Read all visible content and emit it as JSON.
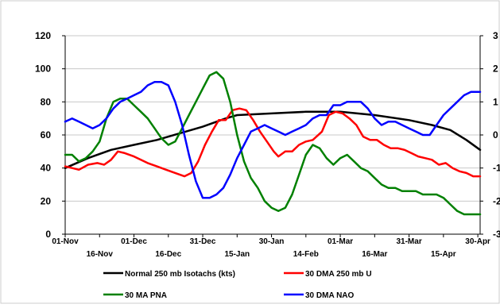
{
  "chart_data": {
    "type": "line",
    "y_left": {
      "min": 0,
      "max": 120,
      "ticks": [
        0,
        20,
        40,
        60,
        80,
        100,
        120
      ]
    },
    "y_right": {
      "min": -3,
      "max": 3,
      "ticks": [
        -3,
        -2,
        -1,
        0,
        1,
        2,
        3
      ],
      "tick_labels": [
        "-3",
        "-2",
        "-1",
        "0",
        "1",
        "2",
        "3"
      ]
    },
    "x": {
      "min": 0,
      "max": 181,
      "ticks_top_row": [
        {
          "label": "01-Nov",
          "day": 0
        },
        {
          "label": "01-Dec",
          "day": 30
        },
        {
          "label": "31-Dec",
          "day": 60
        },
        {
          "label": "30-Jan",
          "day": 90
        },
        {
          "label": "01-Mar",
          "day": 120
        },
        {
          "label": "31-Mar",
          "day": 150
        },
        {
          "label": "30-Apr",
          "day": 180
        }
      ],
      "ticks_bottom_row": [
        {
          "label": "16-Nov",
          "day": 15
        },
        {
          "label": "16-Dec",
          "day": 45
        },
        {
          "label": "15-Jan",
          "day": 75
        },
        {
          "label": "14-Feb",
          "day": 105
        },
        {
          "label": "16-Mar",
          "day": 135
        },
        {
          "label": "15-Apr",
          "day": 165
        }
      ]
    },
    "grid": "horizontal",
    "legend_position": "bottom",
    "series": [
      {
        "name": "Normal 250 mb Isotachs (kts)",
        "color": "#000000",
        "axis": "left",
        "points": [
          [
            0,
            40
          ],
          [
            10,
            46
          ],
          [
            20,
            51
          ],
          [
            30,
            54
          ],
          [
            40,
            57
          ],
          [
            50,
            61
          ],
          [
            60,
            65
          ],
          [
            70,
            70
          ],
          [
            75,
            72
          ],
          [
            90,
            73
          ],
          [
            105,
            74
          ],
          [
            120,
            74
          ],
          [
            135,
            72
          ],
          [
            150,
            69
          ],
          [
            160,
            66
          ],
          [
            168,
            63
          ],
          [
            175,
            57
          ],
          [
            181,
            51
          ]
        ]
      },
      {
        "name": "30 DMA 250 mb U",
        "color": "#ff0000",
        "axis": "left",
        "points": [
          [
            0,
            41
          ],
          [
            3,
            40
          ],
          [
            6,
            39
          ],
          [
            10,
            42
          ],
          [
            14,
            43
          ],
          [
            17,
            42
          ],
          [
            20,
            45
          ],
          [
            23,
            50
          ],
          [
            26,
            49
          ],
          [
            30,
            47
          ],
          [
            33,
            45
          ],
          [
            36,
            43
          ],
          [
            40,
            41
          ],
          [
            44,
            39
          ],
          [
            48,
            37
          ],
          [
            52,
            35
          ],
          [
            55,
            37
          ],
          [
            58,
            44
          ],
          [
            61,
            54
          ],
          [
            64,
            62
          ],
          [
            67,
            69
          ],
          [
            70,
            69
          ],
          [
            73,
            75
          ],
          [
            76,
            76
          ],
          [
            79,
            75
          ],
          [
            82,
            69
          ],
          [
            85,
            62
          ],
          [
            88,
            56
          ],
          [
            91,
            50
          ],
          [
            93,
            47
          ],
          [
            96,
            50
          ],
          [
            99,
            50
          ],
          [
            102,
            54
          ],
          [
            105,
            56
          ],
          [
            108,
            57
          ],
          [
            112,
            62
          ],
          [
            115,
            72
          ],
          [
            118,
            74
          ],
          [
            121,
            73
          ],
          [
            124,
            70
          ],
          [
            127,
            66
          ],
          [
            130,
            59
          ],
          [
            133,
            57
          ],
          [
            136,
            57
          ],
          [
            139,
            54
          ],
          [
            142,
            52
          ],
          [
            145,
            52
          ],
          [
            148,
            51
          ],
          [
            151,
            49
          ],
          [
            154,
            47
          ],
          [
            157,
            46
          ],
          [
            160,
            45
          ],
          [
            163,
            42
          ],
          [
            166,
            43
          ],
          [
            169,
            40
          ],
          [
            172,
            38
          ],
          [
            175,
            37
          ],
          [
            178,
            35
          ],
          [
            181,
            35
          ]
        ]
      },
      {
        "name": "30 MA PNA",
        "color": "#008000",
        "axis": "right",
        "points": [
          [
            0,
            -0.6
          ],
          [
            3,
            -0.6
          ],
          [
            6,
            -0.8
          ],
          [
            9,
            -0.7
          ],
          [
            12,
            -0.5
          ],
          [
            15,
            -0.2
          ],
          [
            18,
            0.5
          ],
          [
            21,
            1.0
          ],
          [
            24,
            1.1
          ],
          [
            27,
            1.1
          ],
          [
            30,
            0.9
          ],
          [
            33,
            0.7
          ],
          [
            36,
            0.5
          ],
          [
            39,
            0.2
          ],
          [
            42,
            -0.1
          ],
          [
            45,
            -0.3
          ],
          [
            48,
            -0.2
          ],
          [
            51,
            0.2
          ],
          [
            54,
            0.6
          ],
          [
            57,
            1.0
          ],
          [
            60,
            1.4
          ],
          [
            63,
            1.8
          ],
          [
            66,
            1.9
          ],
          [
            69,
            1.7
          ],
          [
            72,
            1.0
          ],
          [
            75,
            0.0
          ],
          [
            78,
            -0.8
          ],
          [
            81,
            -1.3
          ],
          [
            84,
            -1.6
          ],
          [
            87,
            -2.0
          ],
          [
            90,
            -2.2
          ],
          [
            93,
            -2.3
          ],
          [
            96,
            -2.2
          ],
          [
            99,
            -1.8
          ],
          [
            102,
            -1.2
          ],
          [
            105,
            -0.6
          ],
          [
            108,
            -0.3
          ],
          [
            111,
            -0.4
          ],
          [
            114,
            -0.7
          ],
          [
            117,
            -0.9
          ],
          [
            120,
            -0.7
          ],
          [
            123,
            -0.6
          ],
          [
            126,
            -0.8
          ],
          [
            129,
            -1.0
          ],
          [
            132,
            -1.1
          ],
          [
            135,
            -1.3
          ],
          [
            138,
            -1.5
          ],
          [
            141,
            -1.6
          ],
          [
            144,
            -1.6
          ],
          [
            147,
            -1.7
          ],
          [
            150,
            -1.7
          ],
          [
            153,
            -1.7
          ],
          [
            156,
            -1.8
          ],
          [
            159,
            -1.8
          ],
          [
            162,
            -1.8
          ],
          [
            165,
            -1.9
          ],
          [
            168,
            -2.1
          ],
          [
            171,
            -2.3
          ],
          [
            174,
            -2.4
          ],
          [
            177,
            -2.4
          ],
          [
            181,
            -2.4
          ]
        ]
      },
      {
        "name": "30 DMA NAO",
        "color": "#0000ff",
        "axis": "right",
        "points": [
          [
            0,
            0.4
          ],
          [
            3,
            0.5
          ],
          [
            6,
            0.4
          ],
          [
            9,
            0.3
          ],
          [
            12,
            0.2
          ],
          [
            15,
            0.3
          ],
          [
            18,
            0.5
          ],
          [
            21,
            0.8
          ],
          [
            24,
            1.0
          ],
          [
            27,
            1.1
          ],
          [
            30,
            1.2
          ],
          [
            33,
            1.3
          ],
          [
            36,
            1.5
          ],
          [
            39,
            1.6
          ],
          [
            42,
            1.6
          ],
          [
            45,
            1.5
          ],
          [
            48,
            1.0
          ],
          [
            51,
            0.3
          ],
          [
            54,
            -0.6
          ],
          [
            57,
            -1.4
          ],
          [
            60,
            -1.9
          ],
          [
            63,
            -1.9
          ],
          [
            66,
            -1.8
          ],
          [
            69,
            -1.6
          ],
          [
            72,
            -1.2
          ],
          [
            75,
            -0.7
          ],
          [
            78,
            -0.3
          ],
          [
            81,
            0.1
          ],
          [
            84,
            0.2
          ],
          [
            87,
            0.3
          ],
          [
            90,
            0.2
          ],
          [
            93,
            0.1
          ],
          [
            96,
            0.0
          ],
          [
            99,
            0.1
          ],
          [
            102,
            0.2
          ],
          [
            105,
            0.3
          ],
          [
            108,
            0.5
          ],
          [
            111,
            0.6
          ],
          [
            114,
            0.6
          ],
          [
            117,
            0.9
          ],
          [
            120,
            0.9
          ],
          [
            123,
            1.0
          ],
          [
            126,
            1.0
          ],
          [
            129,
            1.0
          ],
          [
            132,
            0.8
          ],
          [
            135,
            0.5
          ],
          [
            138,
            0.3
          ],
          [
            141,
            0.4
          ],
          [
            144,
            0.4
          ],
          [
            147,
            0.3
          ],
          [
            150,
            0.2
          ],
          [
            153,
            0.1
          ],
          [
            156,
            0.0
          ],
          [
            159,
            0.0
          ],
          [
            162,
            0.3
          ],
          [
            165,
            0.6
          ],
          [
            168,
            0.8
          ],
          [
            171,
            1.0
          ],
          [
            174,
            1.2
          ],
          [
            177,
            1.3
          ],
          [
            181,
            1.3
          ]
        ]
      }
    ]
  }
}
